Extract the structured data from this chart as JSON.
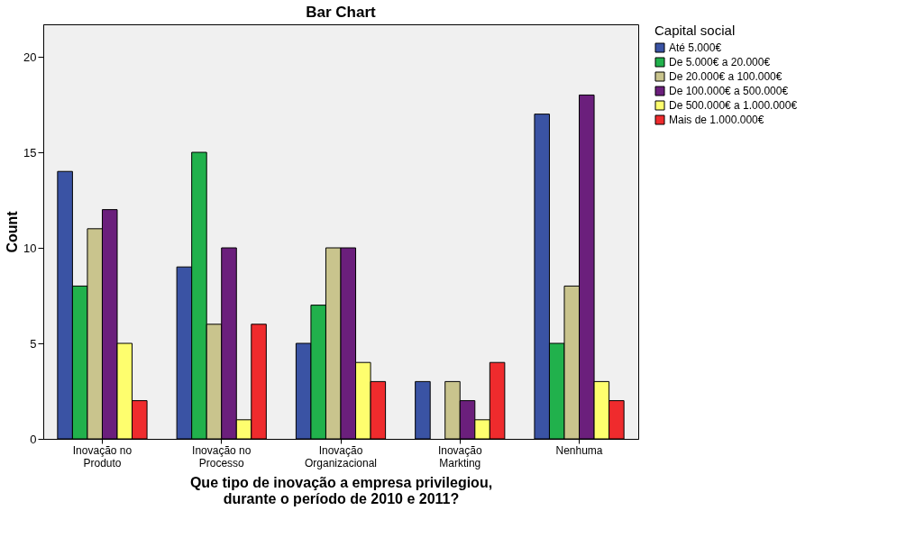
{
  "chart_data": {
    "type": "bar",
    "title": "Bar Chart",
    "xlabel": "Que tipo de inovação a empresa privilegiou, durante o período de 2010 e 2011?",
    "ylabel": "Count",
    "legend_title": "Capital social",
    "categories": [
      "Inovação no Produto",
      "Inovação no Processo",
      "Inovação Organizacional",
      "Inovação Markting",
      "Nenhuma"
    ],
    "series": [
      {
        "name": "Até 5.000€",
        "color": "#3a53a4",
        "values": [
          14,
          9,
          5,
          3,
          17
        ]
      },
      {
        "name": "De 5.000€ a 20.000€",
        "color": "#21b14c",
        "values": [
          8,
          15,
          7,
          null,
          5
        ]
      },
      {
        "name": "De 20.000€ a 100.000€",
        "color": "#c9c48d",
        "values": [
          11,
          6,
          10,
          3,
          8
        ]
      },
      {
        "name": "De 100.000€ a 500.000€",
        "color": "#6b1f7c",
        "values": [
          12,
          10,
          10,
          2,
          18
        ]
      },
      {
        "name": "De 500.000€ a 1.000.000€",
        "color": "#fefe6e",
        "values": [
          5,
          1,
          4,
          1,
          3
        ]
      },
      {
        "name": "Mais de 1.000.000€",
        "color": "#ef2b2d",
        "values": [
          2,
          6,
          3,
          4,
          2
        ]
      }
    ],
    "ylim": [
      0,
      21.7
    ],
    "yticks": [
      0,
      5,
      10,
      15,
      20
    ],
    "grid": false,
    "legend": "top right"
  }
}
